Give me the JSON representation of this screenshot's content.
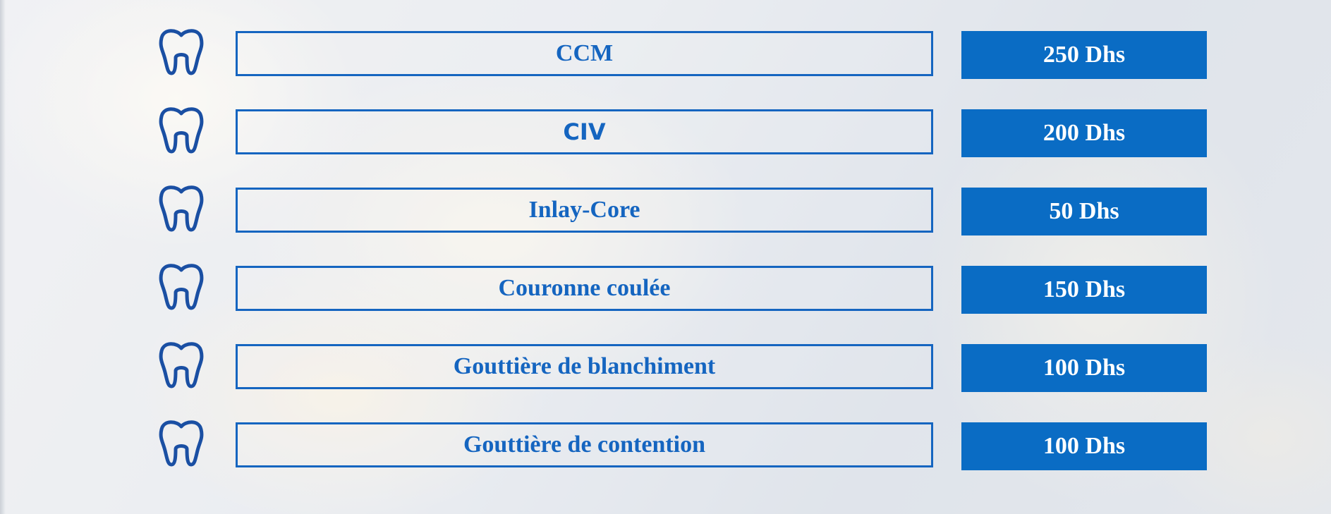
{
  "colors": {
    "accent": "#1565c0",
    "price_bg": "#0a6cc4",
    "price_text": "#ffffff"
  },
  "icon": "tooth-icon",
  "rows": [
    {
      "service": "CCM",
      "price": "250 Dhs"
    },
    {
      "service": "CIV",
      "price": "200 Dhs"
    },
    {
      "service": "Inlay-Core",
      "price": "50 Dhs"
    },
    {
      "service": "Couronne coulée",
      "price": "150 Dhs"
    },
    {
      "service": "Gouttière de blanchiment",
      "price": "100 Dhs"
    },
    {
      "service": "Gouttière de contention",
      "price": "100 Dhs"
    }
  ]
}
